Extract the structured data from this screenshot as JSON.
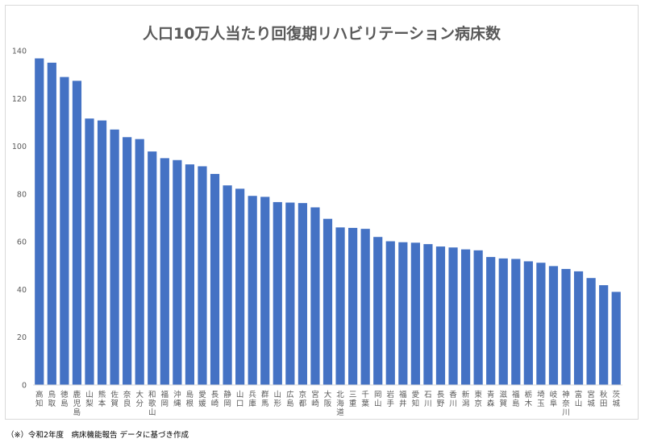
{
  "chart_data": {
    "type": "bar",
    "title": "人口10万人当たり回復期リハビリテーション病床数",
    "xlabel": "",
    "ylabel": "",
    "ylim": [
      0,
      140
    ],
    "yticks": [
      0,
      20,
      40,
      60,
      80,
      100,
      120,
      140
    ],
    "grid": false,
    "legend": "none",
    "bar_color": "#4472c4",
    "categories": [
      "高知",
      "鳥取",
      "徳島",
      "鹿児島",
      "山梨",
      "熊本",
      "佐賀",
      "奈良",
      "大分",
      "和歌山",
      "福岡",
      "沖縄",
      "島根",
      "愛媛",
      "長崎",
      "静岡",
      "山口",
      "兵庫",
      "群馬",
      "山形",
      "広島",
      "京都",
      "宮崎",
      "大阪",
      "北海道",
      "三重",
      "千葉",
      "岡山",
      "岩手",
      "福井",
      "愛知",
      "石川",
      "長野",
      "香川",
      "新潟",
      "東京",
      "青森",
      "滋賀",
      "福島",
      "栃木",
      "埼玉",
      "岐阜",
      "神奈川",
      "富山",
      "宮城",
      "秋田",
      "茨城"
    ],
    "values": [
      136.8,
      135,
      129,
      127.4,
      111.6,
      110.8,
      107,
      103.8,
      103,
      97.8,
      95,
      94.2,
      92.4,
      91.6,
      88.4,
      83.6,
      82.2,
      79.2,
      78.8,
      76.6,
      76.4,
      76.2,
      74.4,
      69.6,
      66,
      65.8,
      65.4,
      62,
      60.2,
      59.8,
      59.6,
      59,
      58,
      57.6,
      56.8,
      56.4,
      53.6,
      53,
      52.8,
      51.8,
      51.2,
      49.8,
      48.6,
      47.6,
      44.8,
      41.8,
      39
    ]
  },
  "footnote": "（※）令和2年度　病床機能報告 データに基づき作成"
}
